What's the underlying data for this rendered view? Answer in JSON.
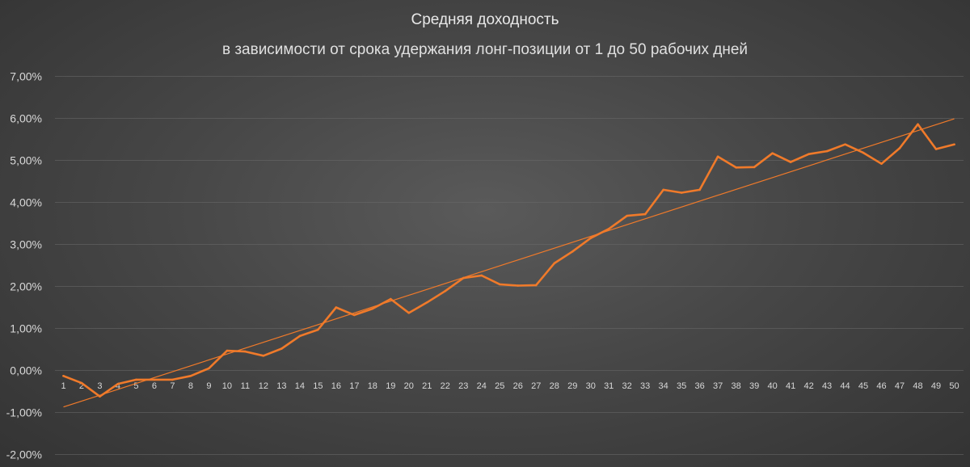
{
  "chart_data": {
    "type": "line",
    "title": "Средняя доходность",
    "subtitle": "в зависимости от срока удержания лонг-позиции от 1 до 50 рабочих дней",
    "xlabel": "",
    "ylabel": "",
    "categories": [
      "1",
      "2",
      "3",
      "4",
      "5",
      "6",
      "7",
      "8",
      "9",
      "10",
      "11",
      "12",
      "13",
      "14",
      "15",
      "16",
      "17",
      "18",
      "19",
      "20",
      "21",
      "22",
      "23",
      "24",
      "25",
      "26",
      "27",
      "28",
      "29",
      "30",
      "31",
      "32",
      "33",
      "34",
      "35",
      "36",
      "37",
      "38",
      "39",
      "40",
      "41",
      "42",
      "43",
      "44",
      "45",
      "46",
      "47",
      "48",
      "49",
      "50"
    ],
    "series": [
      {
        "values": [
          -0.13,
          -0.3,
          -0.62,
          -0.32,
          -0.22,
          -0.22,
          -0.22,
          -0.13,
          0.05,
          0.47,
          0.45,
          0.35,
          0.52,
          0.82,
          0.97,
          1.5,
          1.32,
          1.47,
          1.7,
          1.37,
          1.62,
          1.89,
          2.2,
          2.26,
          2.05,
          2.02,
          2.03,
          2.55,
          2.83,
          3.15,
          3.37,
          3.68,
          3.72,
          4.3,
          4.23,
          4.3,
          5.09,
          4.83,
          4.84,
          5.17,
          4.96,
          5.15,
          5.22,
          5.38,
          5.18,
          4.92,
          5.29,
          5.86,
          5.27,
          5.38
        ],
        "color": "#f07a2a"
      }
    ],
    "trendline": {
      "start": -0.87,
      "end": 5.99,
      "color": "#f07a2a"
    },
    "yticks": [
      -2,
      -1,
      0,
      1,
      2,
      3,
      4,
      5,
      6,
      7
    ],
    "ytick_labels": [
      "-2,00%",
      "-1,00%",
      "0,00%",
      "1,00%",
      "2,00%",
      "3,00%",
      "4,00%",
      "5,00%",
      "6,00%",
      "7,00%"
    ],
    "ylim": [
      -2,
      7
    ],
    "grid": true,
    "legend": "none"
  }
}
